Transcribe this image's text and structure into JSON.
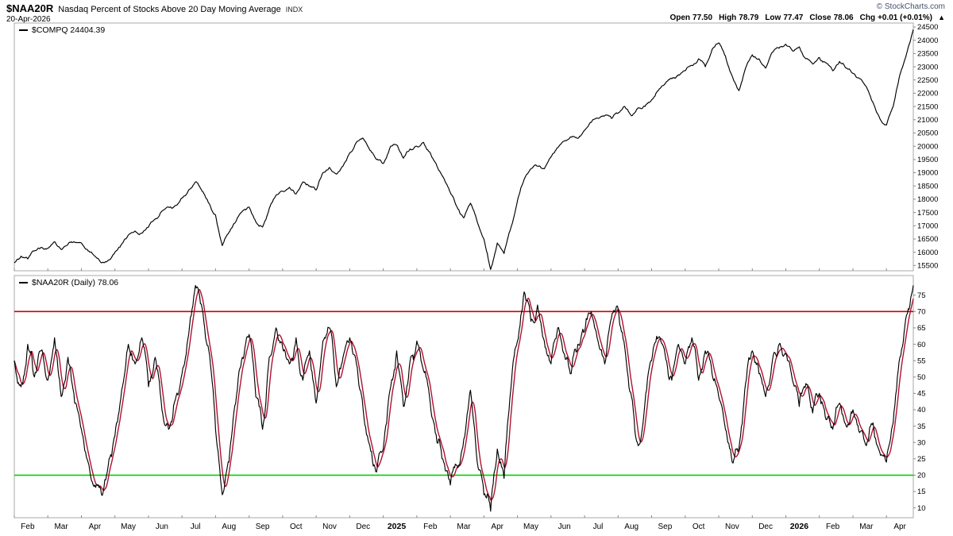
{
  "header": {
    "symbol": "$NAA20R",
    "title": "Nasdaq Percent of Stocks Above 20 Day Moving Average",
    "exchange": "INDX",
    "date": "20-Apr-2026",
    "watermark": "© StockCharts.com",
    "direction_arrow": "▲",
    "ohlc": [
      {
        "label": "Open",
        "value": "77.50"
      },
      {
        "label": "High",
        "value": "78.79"
      },
      {
        "label": "Low",
        "value": "77.47"
      },
      {
        "label": "Close",
        "value": "78.06"
      },
      {
        "label": "Chg",
        "value": "+0.01 (+0.01%)"
      }
    ]
  },
  "xaxis": {
    "labels": [
      "Feb",
      "Mar",
      "Apr",
      "May",
      "Jun",
      "Jul",
      "Aug",
      "Sep",
      "Oct",
      "Nov",
      "Dec",
      "2025",
      "Feb",
      "Mar",
      "Apr",
      "May",
      "Jun",
      "Jul",
      "Aug",
      "Sep",
      "Oct",
      "Nov",
      "Dec",
      "2026",
      "Feb",
      "Mar",
      "Apr"
    ],
    "bold_labels": [
      "2025",
      "2026"
    ]
  },
  "chart_data": [
    {
      "type": "line",
      "panel": "price",
      "legend": "$COMPQ 24404.39",
      "ylim": [
        15300,
        24650
      ],
      "yticks": [
        15500,
        16000,
        16500,
        17000,
        17500,
        18000,
        18500,
        19000,
        19500,
        20000,
        20500,
        21000,
        21500,
        22000,
        22500,
        23000,
        23500,
        24000,
        24500
      ],
      "grid": false,
      "legend_position": "top-left",
      "series": [
        {
          "name": "COMPQ",
          "color": "#000000",
          "values": [
            15600,
            15850,
            15750,
            16050,
            16180,
            16150,
            16400,
            16100,
            16300,
            16380,
            16350,
            16050,
            15850,
            15600,
            15700,
            16000,
            16300,
            16650,
            16800,
            16720,
            16950,
            17250,
            17550,
            17700,
            17750,
            18050,
            18350,
            18650,
            18300,
            17850,
            17400,
            16250,
            16750,
            17150,
            17550,
            17700,
            17150,
            16950,
            17650,
            18150,
            18300,
            18450,
            18200,
            18650,
            18500,
            18350,
            19000,
            19200,
            18950,
            19250,
            19750,
            20150,
            20300,
            19850,
            19500,
            19350,
            19950,
            20050,
            19550,
            19900,
            20000,
            20150,
            19750,
            19250,
            18800,
            18250,
            17700,
            17300,
            17850,
            17150,
            16500,
            15350,
            16350,
            15950,
            16900,
            17950,
            18750,
            19150,
            19250,
            19150,
            19600,
            19950,
            20200,
            20350,
            20300,
            20600,
            20900,
            21050,
            21150,
            21050,
            21250,
            21500,
            21150,
            21450,
            21500,
            21750,
            22100,
            22350,
            22550,
            22700,
            22850,
            23050,
            23300,
            23000,
            23650,
            23900,
            23400,
            22650,
            22100,
            22950,
            23450,
            23300,
            22950,
            23550,
            23700,
            23850,
            23600,
            23750,
            23300,
            23100,
            23350,
            23150,
            22850,
            23200,
            22950,
            22750,
            22550,
            22250,
            21650,
            21050,
            20800,
            21500,
            22700,
            23500,
            24404
          ]
        }
      ]
    },
    {
      "type": "line",
      "panel": "indicator",
      "legend": "$NAA20R (Daily) 78.06",
      "ylim": [
        7,
        81
      ],
      "yticks": [
        10,
        15,
        20,
        25,
        30,
        35,
        40,
        45,
        50,
        55,
        60,
        65,
        70,
        75
      ],
      "grid": false,
      "legend_position": "top-left",
      "hlines": [
        {
          "value": 70,
          "color": "#cc0000",
          "meaning": "overbought"
        },
        {
          "value": 20,
          "color": "#00d400",
          "meaning": "oversold"
        }
      ],
      "series": [
        {
          "name": "NAA20R",
          "color": "#000000",
          "overlay_color": "#b01030",
          "values": [
            55,
            47,
            60,
            50,
            58,
            49,
            62,
            44,
            56,
            42,
            34,
            24,
            17,
            14,
            23,
            32,
            46,
            60,
            54,
            62,
            47,
            56,
            40,
            34,
            43,
            51,
            63,
            78,
            71,
            58,
            34,
            14,
            24,
            42,
            56,
            63,
            44,
            34,
            56,
            65,
            59,
            54,
            62,
            49,
            58,
            42,
            61,
            65,
            47,
            56,
            62,
            54,
            40,
            29,
            21,
            28,
            46,
            58,
            41,
            55,
            61,
            52,
            42,
            30,
            24,
            17,
            23,
            31,
            46,
            24,
            14,
            9,
            28,
            19,
            46,
            61,
            76,
            67,
            72,
            61,
            54,
            65,
            57,
            51,
            60,
            64,
            70,
            61,
            54,
            68,
            71,
            59,
            44,
            29,
            42,
            55,
            62,
            57,
            49,
            60,
            54,
            62,
            49,
            58,
            51,
            44,
            34,
            24,
            28,
            48,
            58,
            51,
            44,
            55,
            60,
            57,
            49,
            41,
            48,
            39,
            45,
            37,
            34,
            42,
            35,
            40,
            33,
            29,
            36,
            27,
            24,
            36,
            56,
            69,
            78
          ]
        }
      ]
    }
  ]
}
